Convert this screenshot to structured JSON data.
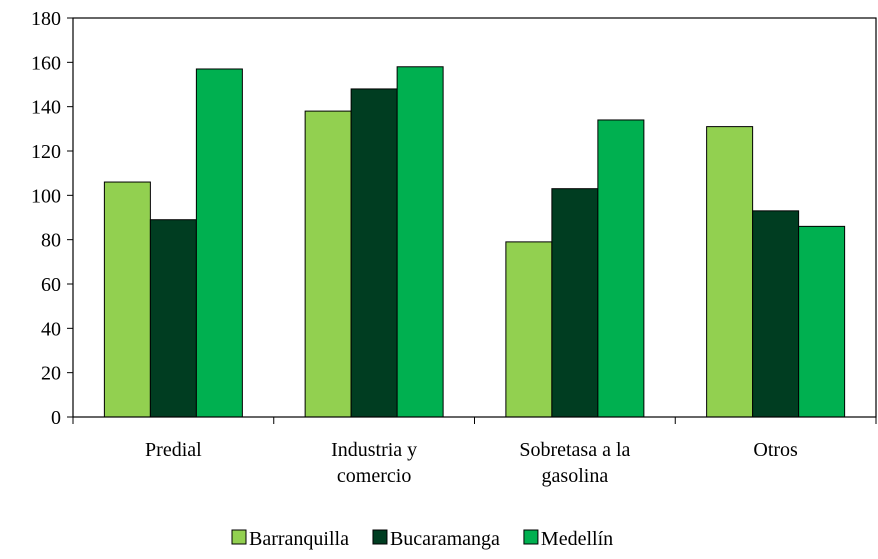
{
  "chart_data": {
    "type": "bar",
    "categories": [
      "Predial",
      "Industria y comercio",
      "Sobretasa a la gasolina",
      "Otros"
    ],
    "series": [
      {
        "name": "Barranquilla",
        "color": "#92d050",
        "values": [
          106,
          138,
          79,
          131
        ]
      },
      {
        "name": "Bucaramanga",
        "color": "#003d21",
        "values": [
          89,
          148,
          103,
          93
        ]
      },
      {
        "name": "Medellín",
        "color": "#00b050",
        "values": [
          157,
          158,
          134,
          86
        ]
      }
    ],
    "ylim": [
      0,
      180
    ],
    "yticks": [
      0,
      20,
      40,
      60,
      80,
      100,
      120,
      140,
      160,
      180
    ],
    "grid": false,
    "legend": "bottom"
  }
}
